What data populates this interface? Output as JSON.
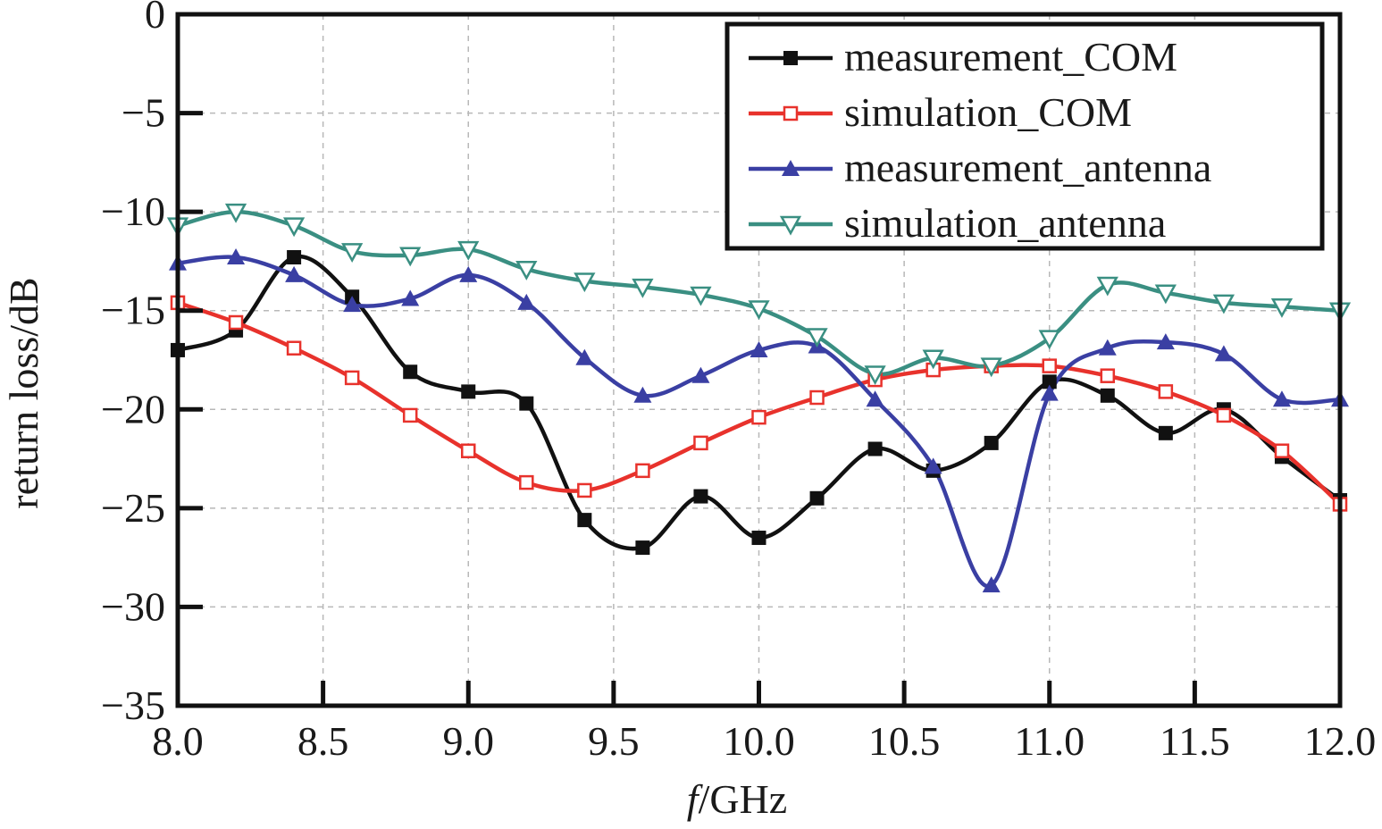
{
  "chart_data": {
    "type": "line",
    "xlabel_italic": "f",
    "xlabel_rest": "/GHz",
    "ylabel": "return loss/dB",
    "xlim": [
      8.0,
      12.0
    ],
    "ylim": [
      -35,
      0
    ],
    "x_ticks": [
      8.0,
      8.5,
      9.0,
      9.5,
      10.0,
      10.5,
      11.0,
      11.5,
      12.0
    ],
    "x_tick_labels": [
      "8.0",
      "8.5",
      "9.0",
      "9.5",
      "10.0",
      "10.5",
      "11.0",
      "11.5",
      "12.0"
    ],
    "y_ticks": [
      0,
      -5,
      -10,
      -15,
      -20,
      -25,
      -30,
      -35
    ],
    "y_tick_labels": [
      "0",
      "−5",
      "−10",
      "−15",
      "−20",
      "−25",
      "−30",
      "−35"
    ],
    "grid": true,
    "legend_position": "top-right",
    "series": [
      {
        "name": "measurement_COM",
        "color": "#111111",
        "marker": "filled-square",
        "x": [
          8.0,
          8.2,
          8.4,
          8.6,
          8.8,
          9.0,
          9.2,
          9.4,
          9.6,
          9.8,
          10.0,
          10.2,
          10.4,
          10.6,
          10.8,
          11.0,
          11.2,
          11.4,
          11.6,
          11.8,
          12.0
        ],
        "y": [
          -17.0,
          -16.0,
          -12.3,
          -14.3,
          -18.1,
          -19.1,
          -19.7,
          -25.6,
          -27.0,
          -24.4,
          -26.5,
          -24.5,
          -22.0,
          -23.1,
          -21.7,
          -18.6,
          -19.3,
          -21.2,
          -20.0,
          -22.4,
          -24.6
        ]
      },
      {
        "name": "simulation_COM",
        "color": "#e8322c",
        "marker": "open-square",
        "x": [
          8.0,
          8.2,
          8.4,
          8.6,
          8.8,
          9.0,
          9.2,
          9.4,
          9.6,
          9.8,
          10.0,
          10.2,
          10.4,
          10.6,
          10.8,
          11.0,
          11.2,
          11.4,
          11.6,
          11.8,
          12.0
        ],
        "y": [
          -14.6,
          -15.6,
          -16.9,
          -18.4,
          -20.3,
          -22.1,
          -23.7,
          -24.1,
          -23.1,
          -21.7,
          -20.4,
          -19.4,
          -18.5,
          -18.0,
          -17.8,
          -17.8,
          -18.3,
          -19.1,
          -20.3,
          -22.1,
          -24.8
        ]
      },
      {
        "name": "measurement_antenna",
        "color": "#3a3fa3",
        "marker": "filled-triangle-up",
        "x": [
          8.0,
          8.2,
          8.4,
          8.6,
          8.8,
          9.0,
          9.2,
          9.4,
          9.6,
          9.8,
          10.0,
          10.2,
          10.4,
          10.6,
          10.8,
          11.0,
          11.2,
          11.4,
          11.6,
          11.8,
          12.0
        ],
        "y": [
          -12.6,
          -12.3,
          -13.2,
          -14.7,
          -14.4,
          -13.2,
          -14.6,
          -17.4,
          -19.3,
          -18.3,
          -17.0,
          -16.8,
          -19.5,
          -22.9,
          -28.9,
          -19.2,
          -16.9,
          -16.6,
          -17.2,
          -19.5,
          -19.5
        ]
      },
      {
        "name": "simulation_antenna",
        "color": "#3a8f82",
        "marker": "open-triangle-down",
        "x": [
          8.0,
          8.2,
          8.4,
          8.6,
          8.8,
          9.0,
          9.2,
          9.4,
          9.6,
          9.8,
          10.0,
          10.2,
          10.4,
          10.6,
          10.8,
          11.0,
          11.2,
          11.4,
          11.6,
          11.8,
          12.0
        ],
        "y": [
          -10.7,
          -10.0,
          -10.7,
          -12.0,
          -12.2,
          -11.9,
          -12.9,
          -13.5,
          -13.8,
          -14.2,
          -14.9,
          -16.3,
          -18.2,
          -17.4,
          -17.8,
          -16.4,
          -13.7,
          -14.1,
          -14.6,
          -14.8,
          -15.0
        ]
      }
    ]
  }
}
